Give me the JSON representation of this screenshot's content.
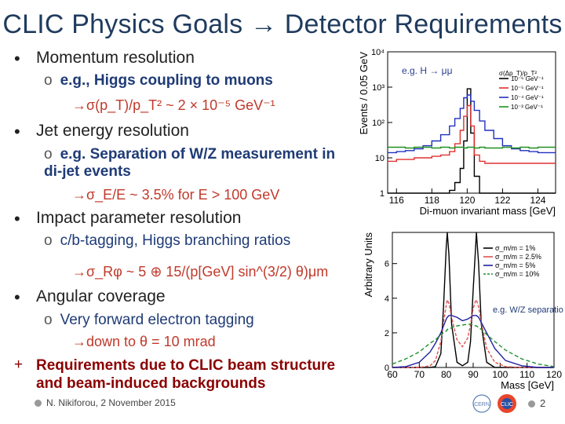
{
  "slide": {
    "title": "CLIC Physics Goals → Detector Requirements",
    "bullets": [
      {
        "text": "Momentum resolution",
        "sub": "e.g., Higgs coupling to muons",
        "arrow": "→σ(p_T)/p_T² ~ 2 × 10⁻⁵ GeV⁻¹"
      },
      {
        "text": "Jet energy resolution",
        "sub": "e.g. Separation of W/Z measurement in di-jet events",
        "arrow": "→σ_E/E ~ 3.5% for E > 100 GeV"
      },
      {
        "text": "Impact parameter resolution",
        "sub": "c/b-tagging, Higgs branching ratios",
        "arrow": "→σ_Rφ ~ 5 ⊕ 15/(p[GeV] sin^(3/2) θ)μm"
      },
      {
        "text": "Angular coverage",
        "sub": "Very forward electron tagging",
        "arrow": "→down to θ = 10 mrad"
      }
    ],
    "requirement": "Requirements due to CLIC beam structure and beam-induced backgrounds",
    "footer": "N. Nikiforou, 2 November 2015",
    "page_number": "2",
    "colors": {
      "title": "#1f3b5e",
      "sub": "#1f3b76",
      "arrow": "#c0392b",
      "requirement": "#8b0000"
    }
  },
  "chart_data": [
    {
      "type": "line",
      "annotation": "e.g. H → μμ",
      "xlabel": "Di-muon invariant mass [GeV]",
      "ylabel": "Events / 0.05 GeV",
      "xlim": [
        115.5,
        125
      ],
      "ylim": [
        1,
        10000
      ],
      "log_y": true,
      "x_ticks": [
        116,
        118,
        120,
        122,
        124
      ],
      "y_ticks": [
        1,
        10,
        100,
        1000,
        10000
      ],
      "y_tick_labels": [
        "1",
        "10",
        "10²",
        "10³",
        "10⁴"
      ],
      "legend_title": "σ(Δp_T)/p_T²",
      "legend_position": "top-right",
      "x": [
        115.5,
        116,
        116.5,
        117,
        117.5,
        118,
        118.5,
        119,
        119.3,
        119.6,
        119.8,
        120,
        120.2,
        120.4,
        120.7,
        121,
        121.5,
        122,
        122.5,
        123,
        123.5,
        124,
        125
      ],
      "series": [
        {
          "name": "10⁻⁶ GeV⁻¹",
          "color": "#000000",
          "values": [
            1,
            1,
            1,
            1,
            1,
            1,
            1,
            1.2,
            2,
            5,
            30,
            900,
            50,
            3,
            1,
            1,
            1,
            1,
            1,
            1,
            1,
            1,
            1
          ]
        },
        {
          "name": "10⁻⁵ GeV⁻¹",
          "color": "#e03030",
          "values": [
            8,
            9,
            9,
            10,
            10,
            11,
            12,
            15,
            25,
            60,
            150,
            300,
            80,
            12,
            8,
            7,
            7,
            7,
            7,
            7,
            7,
            7,
            7
          ]
        },
        {
          "name": "10⁻⁴ GeV⁻¹",
          "color": "#2030c0",
          "values": [
            14,
            15,
            16,
            18,
            22,
            30,
            45,
            80,
            130,
            250,
            500,
            600,
            400,
            220,
            110,
            60,
            35,
            22,
            18,
            16,
            15,
            14,
            14
          ]
        },
        {
          "name": "10⁻³ GeV⁻¹",
          "color": "#209020",
          "values": [
            20,
            20,
            19,
            20,
            20,
            19,
            20,
            19,
            20,
            20,
            19,
            20,
            20,
            19,
            20,
            19,
            19,
            20,
            19,
            20,
            19,
            20,
            20
          ]
        }
      ]
    },
    {
      "type": "line",
      "annotation": "e.g. W/Z separation",
      "xlabel": "Mass [GeV]",
      "ylabel": "Arbitrary Units",
      "xlim": [
        60,
        120
      ],
      "ylim": [
        0,
        7.8
      ],
      "x_ticks": [
        60,
        70,
        80,
        90,
        100,
        110,
        120
      ],
      "y_ticks": [
        0,
        2,
        4,
        6
      ],
      "legend_position": "top-right",
      "x": [
        60,
        65,
        70,
        74,
        76,
        78,
        79,
        80,
        80.4,
        81,
        82,
        84,
        86,
        88,
        89,
        90,
        91,
        91.2,
        92,
        93,
        95,
        98,
        102,
        108,
        114,
        120
      ],
      "series": [
        {
          "name": "σ_m/m = 1%",
          "color": "#000000",
          "values": [
            0,
            0,
            0,
            0,
            0.05,
            0.8,
            3.5,
            7.0,
            7.8,
            6.5,
            2.5,
            0.3,
            0.1,
            0.3,
            1.5,
            4.5,
            7.2,
            7.8,
            6.0,
            2.5,
            0.3,
            0,
            0,
            0,
            0,
            0
          ]
        },
        {
          "name": "σ_m/m = 2.5%",
          "color": "#e05050",
          "values": [
            0,
            0,
            0,
            0.1,
            0.4,
            1.5,
            2.6,
            3.6,
            3.9,
            3.7,
            2.9,
            1.6,
            1.2,
            1.7,
            2.5,
            3.4,
            3.9,
            3.9,
            3.5,
            2.6,
            1.1,
            0.3,
            0.05,
            0,
            0,
            0
          ]
        },
        {
          "name": "σ_m/m = 5%",
          "color": "#2020a0",
          "values": [
            0,
            0.05,
            0.3,
            0.9,
            1.4,
            2.0,
            2.4,
            2.8,
            2.9,
            3.0,
            3.0,
            2.9,
            2.7,
            2.8,
            2.9,
            3.0,
            3.0,
            3.0,
            2.9,
            2.6,
            2.0,
            1.1,
            0.4,
            0.1,
            0,
            0
          ]
        },
        {
          "name": "σ_m/m = 10%",
          "color": "#209030",
          "values": [
            0.2,
            0.5,
            0.9,
            1.4,
            1.6,
            1.9,
            2.0,
            2.1,
            2.2,
            2.2,
            2.3,
            2.4,
            2.45,
            2.5,
            2.5,
            2.45,
            2.4,
            2.4,
            2.3,
            2.2,
            1.9,
            1.5,
            1.0,
            0.5,
            0.2,
            0.05
          ]
        }
      ]
    }
  ]
}
